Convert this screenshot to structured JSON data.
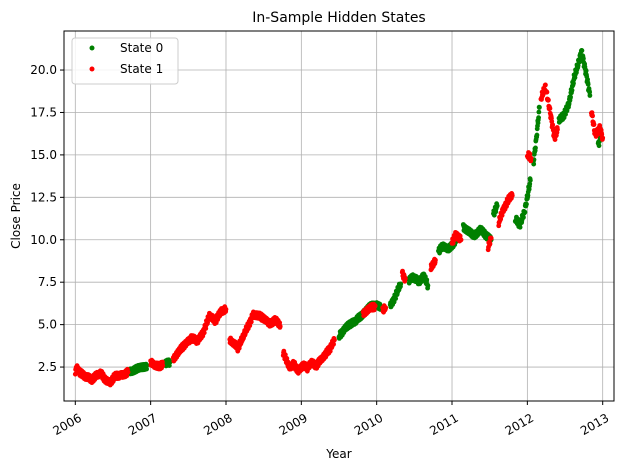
{
  "chart_data": {
    "type": "scatter",
    "title": "In-Sample Hidden States",
    "xlabel": "Year",
    "ylabel": "Close Price",
    "x_ticks": [
      "2006",
      "2007",
      "2008",
      "2009",
      "2010",
      "2011",
      "2012",
      "2013"
    ],
    "y_ticks": [
      "2.5",
      "5.0",
      "7.5",
      "10.0",
      "12.5",
      "15.0",
      "17.5",
      "20.0"
    ],
    "xlim": [
      2005.85,
      2013.15
    ],
    "ylim": [
      0.5,
      22.3
    ],
    "grid": true,
    "legend_position": "top-left",
    "series": [
      {
        "name": "State 0",
        "color": "#008000",
        "segments": [
          {
            "x": [
              2006.72,
              2006.85,
              2006.95
            ],
            "y": [
              2.2,
              2.4,
              2.6
            ]
          },
          {
            "x": [
              2007.2,
              2007.26
            ],
            "y": [
              2.7,
              2.8
            ]
          },
          {
            "x": [
              2009.5,
              2009.58,
              2009.66,
              2009.72,
              2009.8,
              2009.9,
              2010.0,
              2010.05
            ],
            "y": [
              4.3,
              4.8,
              5.0,
              5.2,
              5.6,
              6.0,
              6.2,
              6.0
            ]
          },
          {
            "x": [
              2010.18,
              2010.26,
              2010.32
            ],
            "y": [
              6.1,
              6.8,
              7.4
            ]
          },
          {
            "x": [
              2010.42,
              2010.48,
              2010.56,
              2010.62,
              2010.68
            ],
            "y": [
              7.6,
              7.8,
              7.5,
              7.9,
              7.3
            ]
          },
          {
            "x": [
              2010.82,
              2010.88,
              2010.95,
              2011.02,
              2011.08
            ],
            "y": [
              9.3,
              9.6,
              9.5,
              9.8,
              10.2
            ]
          },
          {
            "x": [
              2011.15,
              2011.22,
              2011.3,
              2011.38,
              2011.45,
              2011.52
            ],
            "y": [
              10.8,
              10.5,
              10.3,
              10.6,
              10.2,
              10.0
            ]
          },
          {
            "x": [
              2011.55,
              2011.6
            ],
            "y": [
              11.5,
              12.0
            ]
          },
          {
            "x": [
              2011.84,
              2011.9,
              2011.96,
              2012.0,
              2012.04
            ],
            "y": [
              11.2,
              10.9,
              11.6,
              12.5,
              13.5
            ]
          },
          {
            "x": [
              2012.08,
              2012.12,
              2012.16
            ],
            "y": [
              14.5,
              16.0,
              17.8
            ]
          },
          {
            "x": [
              2012.42,
              2012.48,
              2012.55,
              2012.62,
              2012.67,
              2012.72,
              2012.78,
              2012.83
            ],
            "y": [
              17.0,
              17.3,
              18.0,
              19.5,
              20.3,
              21.1,
              19.8,
              18.5
            ]
          },
          {
            "x": [
              2012.94,
              2012.97
            ],
            "y": [
              15.6,
              16.0
            ]
          }
        ]
      },
      {
        "name": "State 1",
        "color": "#ff0000",
        "segments": [
          {
            "x": [
              2006.0,
              2006.02,
              2006.06,
              2006.1,
              2006.16,
              2006.22,
              2006.28,
              2006.34,
              2006.4,
              2006.46,
              2006.52,
              2006.58,
              2006.64,
              2006.7
            ],
            "y": [
              2.2,
              2.5,
              2.2,
              2.0,
              1.9,
              1.8,
              2.0,
              2.1,
              1.8,
              1.6,
              1.9,
              2.0,
              2.1,
              2.2
            ]
          },
          {
            "x": [
              2007.0,
              2007.05,
              2007.1,
              2007.16
            ],
            "y": [
              2.8,
              2.6,
              2.6,
              2.6
            ]
          },
          {
            "x": [
              2007.3,
              2007.38,
              2007.46,
              2007.54,
              2007.62,
              2007.7,
              2007.78,
              2007.86,
              2007.94,
              2008.0
            ],
            "y": [
              3.0,
              3.4,
              3.9,
              4.2,
              4.0,
              4.6,
              5.5,
              5.2,
              5.8,
              5.9
            ]
          },
          {
            "x": [
              2008.05,
              2008.1,
              2008.16,
              2008.22,
              2008.3,
              2008.36,
              2008.42,
              2008.5,
              2008.58,
              2008.66,
              2008.72
            ],
            "y": [
              4.1,
              3.9,
              3.6,
              4.2,
              5.0,
              5.6,
              5.5,
              5.4,
              5.1,
              5.3,
              4.9
            ]
          },
          {
            "x": [
              2008.76,
              2008.8,
              2008.84,
              2008.9,
              2008.96,
              2009.02,
              2009.08,
              2009.14,
              2009.2,
              2009.26,
              2009.32,
              2009.38,
              2009.44
            ],
            "y": [
              3.4,
              2.9,
              2.5,
              2.7,
              2.3,
              2.6,
              2.4,
              2.8,
              2.6,
              2.9,
              3.2,
              3.6,
              4.1
            ]
          },
          {
            "x": [
              2009.82,
              2009.9,
              2009.98
            ],
            "y": [
              5.7,
              5.9,
              6.1
            ]
          },
          {
            "x": [
              2010.08,
              2010.12
            ],
            "y": [
              5.8,
              6.0
            ]
          },
          {
            "x": [
              2010.34,
              2010.38
            ],
            "y": [
              8.0,
              7.7
            ]
          },
          {
            "x": [
              2010.72,
              2010.78
            ],
            "y": [
              8.3,
              8.8
            ]
          },
          {
            "x": [
              2011.0,
              2011.05,
              2011.12
            ],
            "y": [
              9.8,
              10.3,
              10.0
            ]
          },
          {
            "x": [
              2011.48,
              2011.52
            ],
            "y": [
              9.6,
              10.1
            ]
          },
          {
            "x": [
              2011.62,
              2011.68,
              2011.74,
              2011.8
            ],
            "y": [
              11.0,
              11.8,
              12.3,
              12.6
            ]
          },
          {
            "x": [
              2012.0,
              2012.05
            ],
            "y": [
              15.0,
              14.8
            ]
          },
          {
            "x": [
              2012.18,
              2012.24,
              2012.3,
              2012.36,
              2012.4
            ],
            "y": [
              18.3,
              19.0,
              17.6,
              16.0,
              16.5
            ]
          },
          {
            "x": [
              2012.85,
              2012.9,
              2012.96,
              2013.0
            ],
            "y": [
              17.6,
              16.2,
              16.6,
              16.0
            ]
          }
        ]
      }
    ]
  }
}
